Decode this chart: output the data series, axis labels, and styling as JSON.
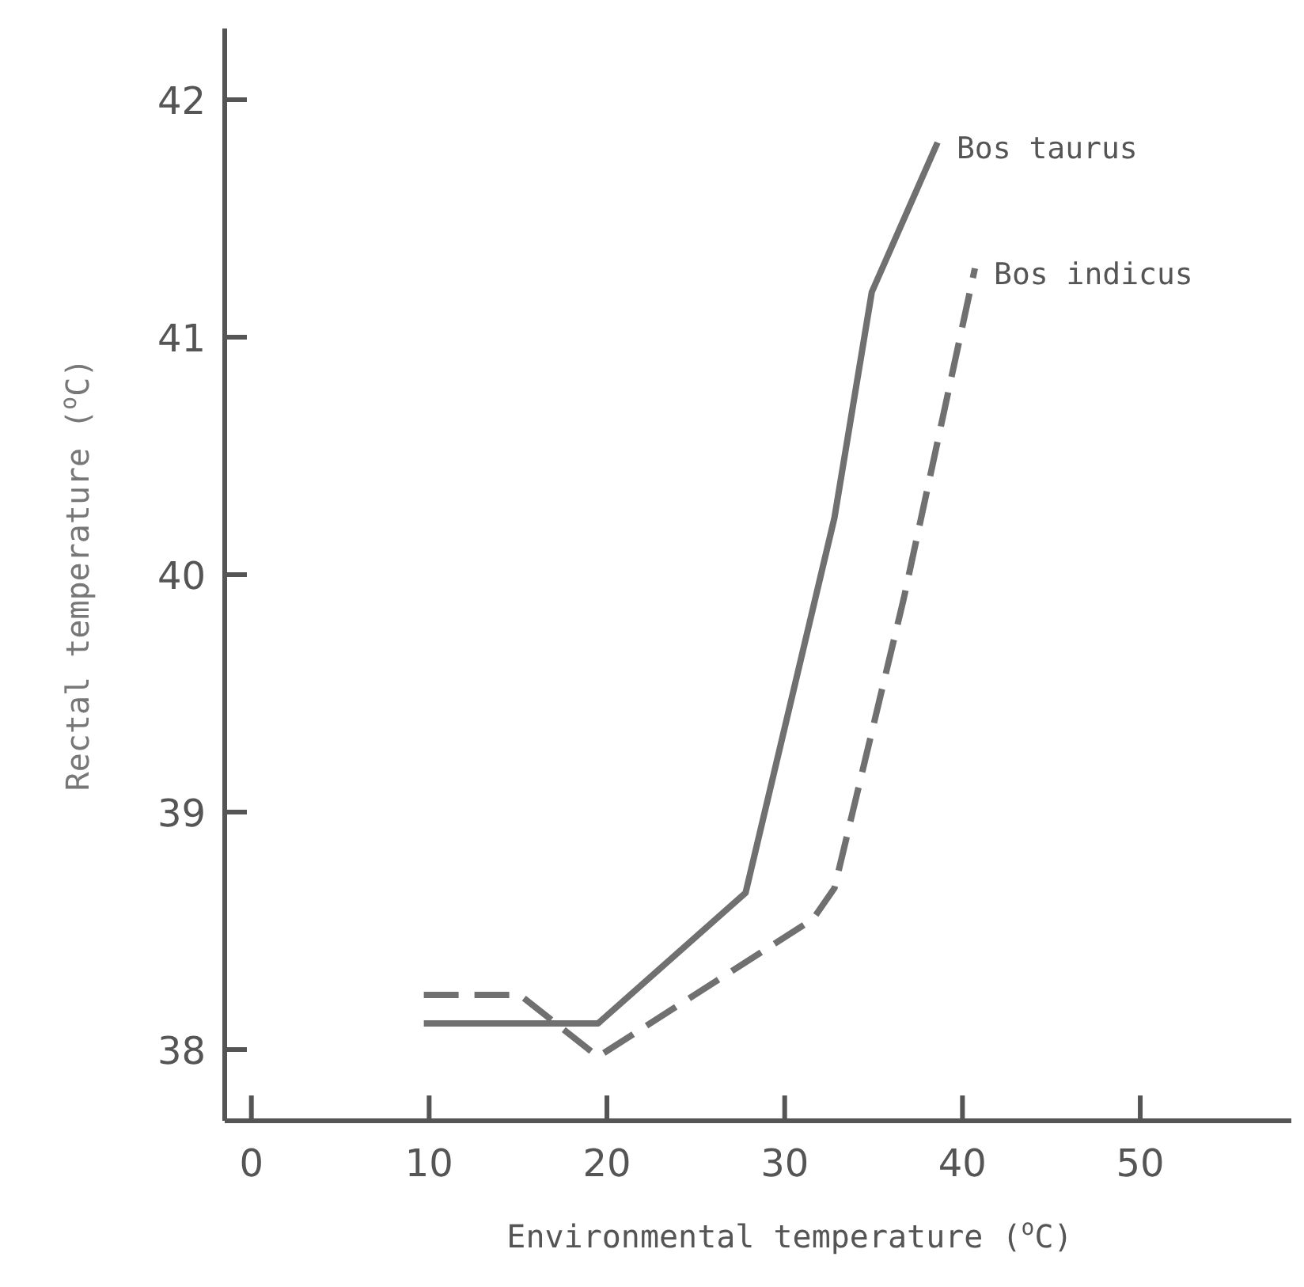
{
  "chart_data": {
    "type": "line",
    "xlabel": "Environmental temperature ($^{o}$C)",
    "ylabel": "Rectal temperature ($^{o}$C)",
    "xlim": [
      -1.5,
      58.5
    ],
    "ylim": [
      37.7,
      42.3
    ],
    "xticks": [
      0,
      10,
      20,
      30,
      40,
      50
    ],
    "yticks": [
      38,
      39,
      40,
      41,
      42
    ],
    "grid": false,
    "legend": false,
    "marker": "none",
    "series": [
      {
        "name": "Bos taurus",
        "color": "#707070",
        "line_style": "solid",
        "x": [
          9.7,
          19.5,
          27.8,
          32.8,
          34.9,
          38.6
        ],
        "values": [
          38.11,
          38.11,
          38.66,
          40.24,
          41.19,
          41.82
        ]
      },
      {
        "name": "Bos indicus",
        "color": "#707070",
        "line_style": "dashed",
        "x": [
          9.7,
          15.1,
          19.5,
          31.6,
          32.8,
          36.7,
          40.7
        ],
        "values": [
          38.23,
          38.23,
          37.97,
          38.55,
          38.68,
          39.9,
          41.29
        ]
      }
    ]
  }
}
